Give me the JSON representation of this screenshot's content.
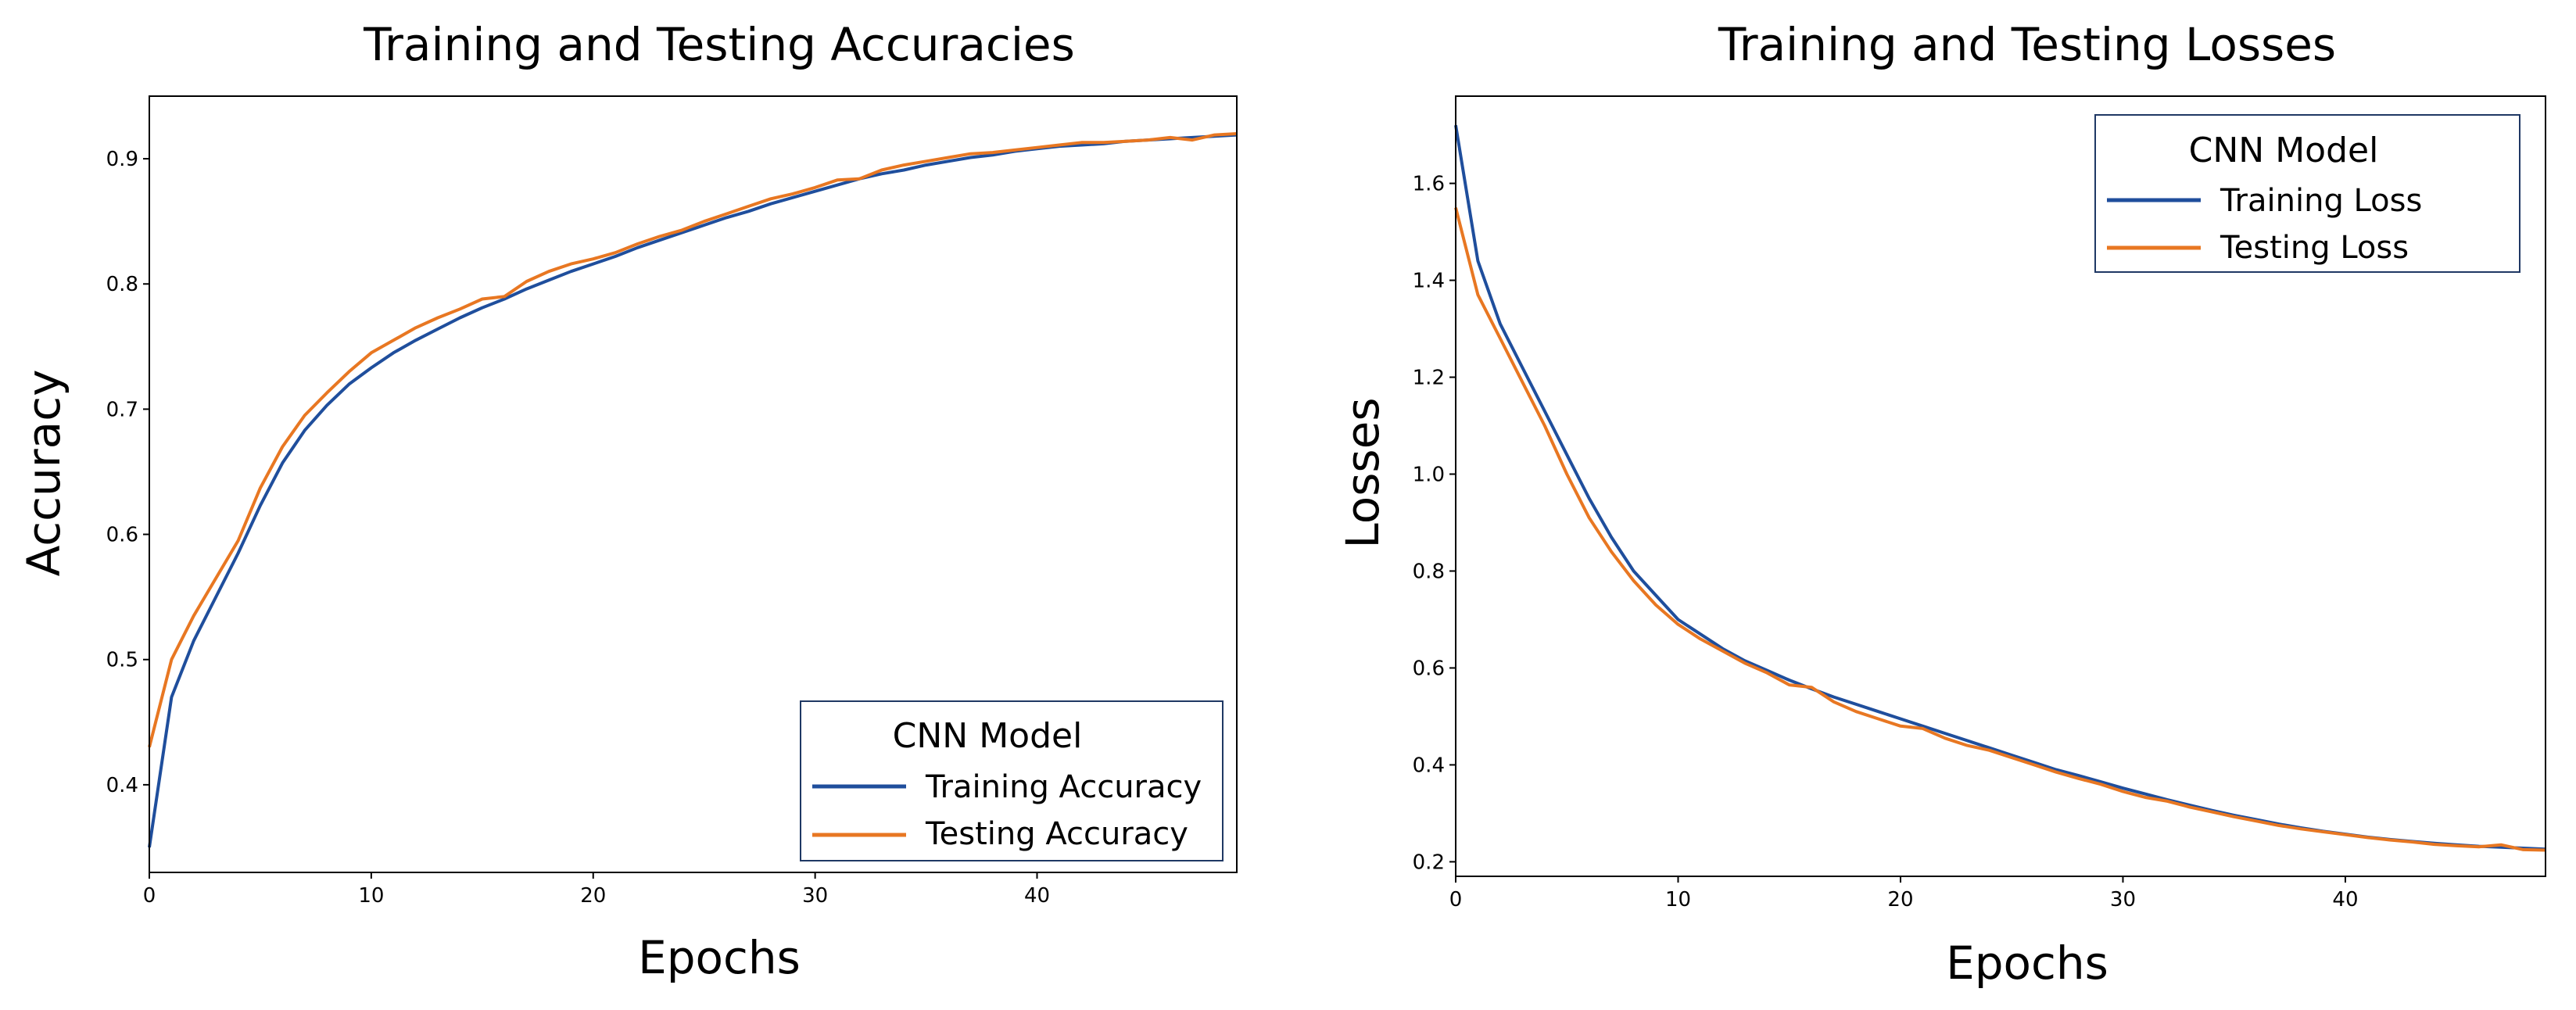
{
  "chart_data": [
    {
      "type": "line",
      "title": "Training and Testing Accuracies",
      "xlabel": "Epochs",
      "ylabel": "Accuracy",
      "xlim": [
        0,
        49
      ],
      "ylim": [
        0.33,
        0.95
      ],
      "xticks": [
        0,
        10,
        20,
        30,
        40
      ],
      "yticks": [
        0.4,
        0.5,
        0.6,
        0.7,
        0.8,
        0.9
      ],
      "grid": false,
      "legend": {
        "title": "CNN Model",
        "placement": "bottom-right"
      },
      "x": [
        0,
        1,
        2,
        3,
        4,
        5,
        6,
        7,
        8,
        9,
        10,
        11,
        12,
        13,
        14,
        15,
        16,
        17,
        18,
        19,
        20,
        21,
        22,
        23,
        24,
        25,
        26,
        27,
        28,
        29,
        30,
        31,
        32,
        33,
        34,
        35,
        36,
        37,
        38,
        39,
        40,
        41,
        42,
        43,
        44,
        45,
        46,
        47,
        48,
        49
      ],
      "series": [
        {
          "name": "Training Accuracy",
          "color": "#1f4e9c",
          "values": [
            0.35,
            0.47,
            0.515,
            0.55,
            0.585,
            0.623,
            0.657,
            0.683,
            0.703,
            0.72,
            0.733,
            0.745,
            0.755,
            0.764,
            0.773,
            0.781,
            0.788,
            0.796,
            0.803,
            0.81,
            0.816,
            0.822,
            0.829,
            0.835,
            0.841,
            0.847,
            0.853,
            0.858,
            0.864,
            0.869,
            0.874,
            0.879,
            0.884,
            0.888,
            0.891,
            0.895,
            0.898,
            0.901,
            0.903,
            0.906,
            0.908,
            0.91,
            0.911,
            0.912,
            0.914,
            0.915,
            0.916,
            0.917,
            0.918,
            0.919
          ]
        },
        {
          "name": "Testing Accuracy",
          "color": "#e87722",
          "values": [
            0.43,
            0.5,
            0.535,
            0.565,
            0.595,
            0.637,
            0.67,
            0.695,
            0.713,
            0.73,
            0.745,
            0.755,
            0.765,
            0.773,
            0.78,
            0.788,
            0.79,
            0.802,
            0.81,
            0.816,
            0.82,
            0.825,
            0.832,
            0.838,
            0.843,
            0.85,
            0.856,
            0.862,
            0.868,
            0.872,
            0.877,
            0.883,
            0.884,
            0.891,
            0.895,
            0.898,
            0.901,
            0.904,
            0.905,
            0.907,
            0.909,
            0.911,
            0.913,
            0.913,
            0.914,
            0.915,
            0.917,
            0.915,
            0.919,
            0.92
          ]
        }
      ]
    },
    {
      "type": "line",
      "title": "Training and Testing Losses",
      "xlabel": "Epochs",
      "ylabel": "Losses",
      "xlim": [
        0,
        49
      ],
      "ylim": [
        0.17,
        1.78
      ],
      "xticks": [
        0,
        10,
        20,
        30,
        40
      ],
      "yticks": [
        0.2,
        0.4,
        0.6,
        0.8,
        1.0,
        1.2,
        1.4,
        1.6
      ],
      "ytick_labels": [
        "0.2",
        "0.4",
        "0.6",
        "0.8",
        "1.0",
        "1.2",
        "1.4",
        "1.6"
      ],
      "grid": false,
      "legend": {
        "title": "CNN Model",
        "placement": "top-right"
      },
      "x": [
        0,
        1,
        2,
        3,
        4,
        5,
        6,
        7,
        8,
        9,
        10,
        11,
        12,
        13,
        14,
        15,
        16,
        17,
        18,
        19,
        20,
        21,
        22,
        23,
        24,
        25,
        26,
        27,
        28,
        29,
        30,
        31,
        32,
        33,
        34,
        35,
        36,
        37,
        38,
        39,
        40,
        41,
        42,
        43,
        44,
        45,
        46,
        47,
        48,
        49
      ],
      "series": [
        {
          "name": "Training Loss",
          "color": "#1f4e9c",
          "values": [
            1.72,
            1.44,
            1.31,
            1.22,
            1.13,
            1.04,
            0.95,
            0.87,
            0.8,
            0.75,
            0.7,
            0.67,
            0.64,
            0.615,
            0.595,
            0.575,
            0.557,
            0.54,
            0.525,
            0.51,
            0.495,
            0.48,
            0.465,
            0.45,
            0.435,
            0.42,
            0.405,
            0.39,
            0.378,
            0.365,
            0.352,
            0.34,
            0.328,
            0.317,
            0.306,
            0.296,
            0.287,
            0.278,
            0.27,
            0.263,
            0.257,
            0.251,
            0.246,
            0.242,
            0.238,
            0.235,
            0.232,
            0.23,
            0.228,
            0.226
          ]
        },
        {
          "name": "Testing Loss",
          "color": "#e87722",
          "values": [
            1.55,
            1.37,
            1.28,
            1.19,
            1.1,
            1.0,
            0.91,
            0.84,
            0.78,
            0.73,
            0.69,
            0.66,
            0.635,
            0.61,
            0.59,
            0.565,
            0.56,
            0.53,
            0.51,
            0.495,
            0.48,
            0.475,
            0.455,
            0.44,
            0.43,
            0.415,
            0.4,
            0.385,
            0.372,
            0.36,
            0.345,
            0.333,
            0.325,
            0.313,
            0.303,
            0.293,
            0.284,
            0.275,
            0.268,
            0.262,
            0.256,
            0.25,
            0.245,
            0.241,
            0.236,
            0.233,
            0.231,
            0.235,
            0.225,
            0.224
          ]
        }
      ]
    }
  ]
}
